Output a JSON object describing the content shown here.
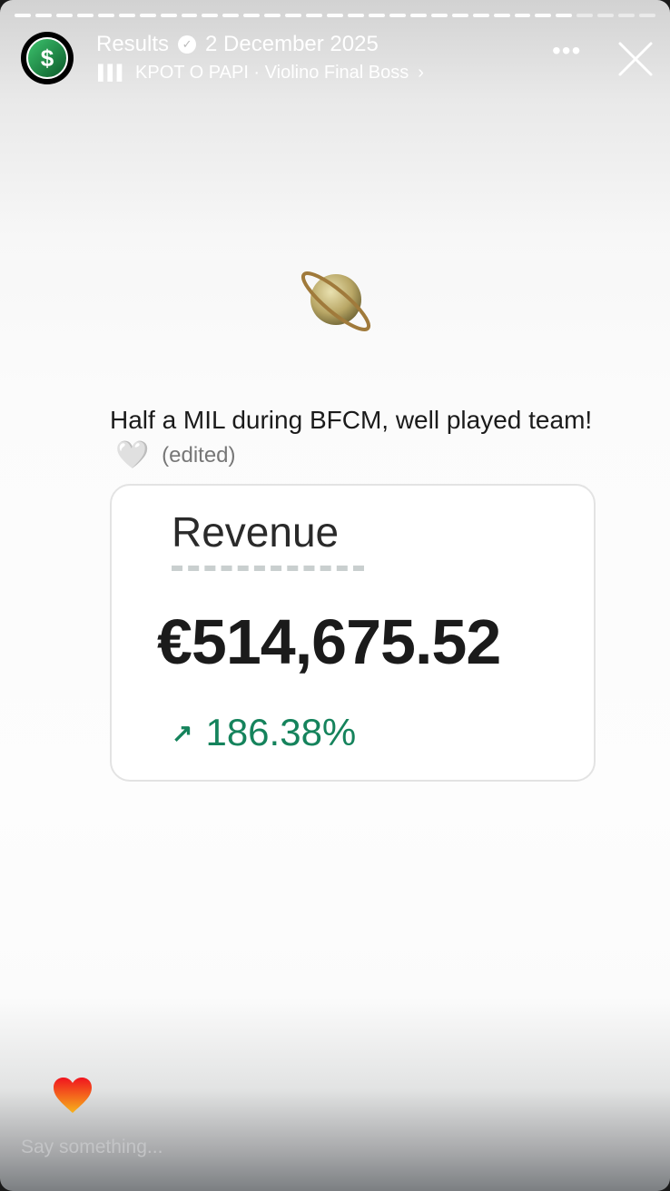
{
  "story": {
    "progress": {
      "total_segments": 31,
      "current_segment": 27
    },
    "account_name": "Results",
    "verified": true,
    "date": "2 December 2025",
    "music": {
      "icon": "music-bars-icon",
      "text": "KPOT O PAPI · Violino Final Boss",
      "chevron": "›"
    },
    "more_label": "•••",
    "caption": {
      "text": "Half a MIL during BFCM, well played team!",
      "emoji": "🤍",
      "edited": "(edited)"
    },
    "card": {
      "label": "Revenue",
      "value": "€514,675.52",
      "change_arrow": "↗",
      "change": "186.38%",
      "change_color": "#15835c"
    },
    "reply_placeholder": "Say something..."
  }
}
